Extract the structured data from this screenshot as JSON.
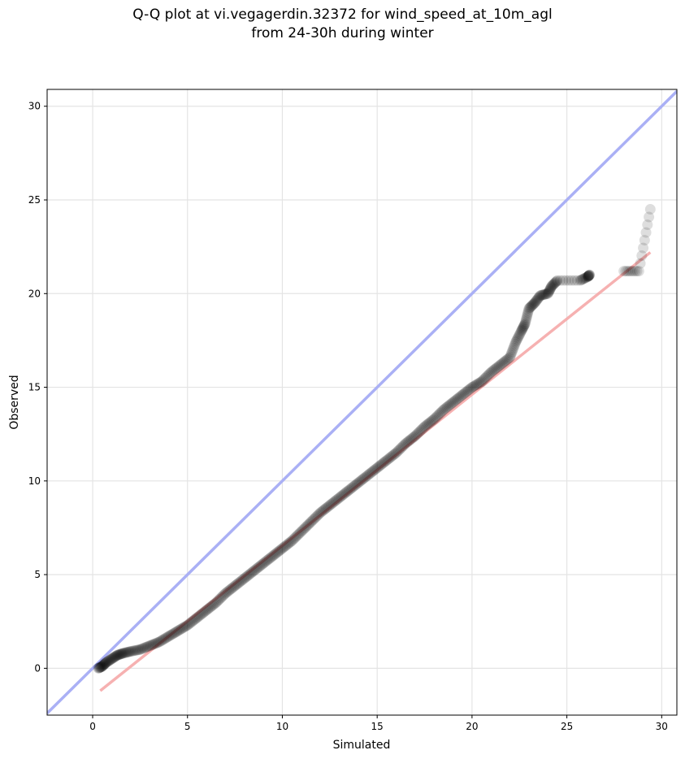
{
  "title_line1": "Q-Q plot at vi.vegagerdin.32372 for wind_speed_at_10m_agl",
  "title_line2": "from 24-30h during winter",
  "chart_data": {
    "type": "scatter",
    "title": "Q-Q plot at vi.vegagerdin.32372 for wind_speed_at_10m_agl from 24-30h during winter",
    "xlabel": "Simulated",
    "ylabel": "Observed",
    "xlim": [
      -2.4,
      30.8
    ],
    "ylim": [
      -2.5,
      30.9
    ],
    "xticks": [
      0,
      5,
      10,
      15,
      20,
      25,
      30
    ],
    "yticks": [
      0,
      5,
      10,
      15,
      20,
      25,
      30
    ],
    "grid": true,
    "colors": {
      "points": "#000000",
      "identity_line": "#aab0f5",
      "fit_line": "#f5a8a8",
      "grid": "#e4e4e4"
    },
    "identity_line": {
      "x": [
        -2.4,
        30.8
      ],
      "y": [
        -2.4,
        30.8
      ]
    },
    "fit_line": {
      "x": [
        0.4,
        29.4
      ],
      "y": [
        -1.2,
        22.2
      ]
    },
    "quantiles": {
      "simulated": [
        0.3,
        0.5,
        0.7,
        1.0,
        1.3,
        1.6,
        2.0,
        2.5,
        3.0,
        3.5,
        4.0,
        4.5,
        5.0,
        5.5,
        6.0,
        6.5,
        7.0,
        7.5,
        8.0,
        8.5,
        9.0,
        9.5,
        10.0,
        10.5,
        11.0,
        11.5,
        12.0,
        12.5,
        13.0,
        13.5,
        14.0,
        14.5,
        15.0,
        15.5,
        16.0,
        16.5,
        17.0,
        17.5,
        18.0,
        18.5,
        19.0,
        19.5,
        20.0,
        20.5,
        21.0,
        21.5,
        22.0,
        22.3,
        22.6,
        22.8,
        23.0,
        23.3,
        23.6,
        24.0,
        24.2,
        24.5,
        25.7,
        26.1,
        26.2,
        28.0,
        28.8,
        29.4
      ],
      "observed": [
        0.0,
        0.1,
        0.3,
        0.5,
        0.7,
        0.8,
        0.9,
        1.0,
        1.2,
        1.4,
        1.7,
        2.0,
        2.3,
        2.7,
        3.1,
        3.5,
        4.0,
        4.4,
        4.8,
        5.2,
        5.6,
        6.0,
        6.4,
        6.8,
        7.3,
        7.8,
        8.3,
        8.7,
        9.1,
        9.5,
        9.9,
        10.3,
        10.7,
        11.1,
        11.5,
        12.0,
        12.4,
        12.9,
        13.3,
        13.8,
        14.2,
        14.6,
        15.0,
        15.3,
        15.8,
        16.2,
        16.6,
        17.4,
        18.0,
        18.4,
        19.2,
        19.5,
        19.9,
        20.0,
        20.4,
        20.7,
        20.7,
        20.9,
        21.0,
        21.2,
        21.2,
        24.5
      ]
    }
  }
}
